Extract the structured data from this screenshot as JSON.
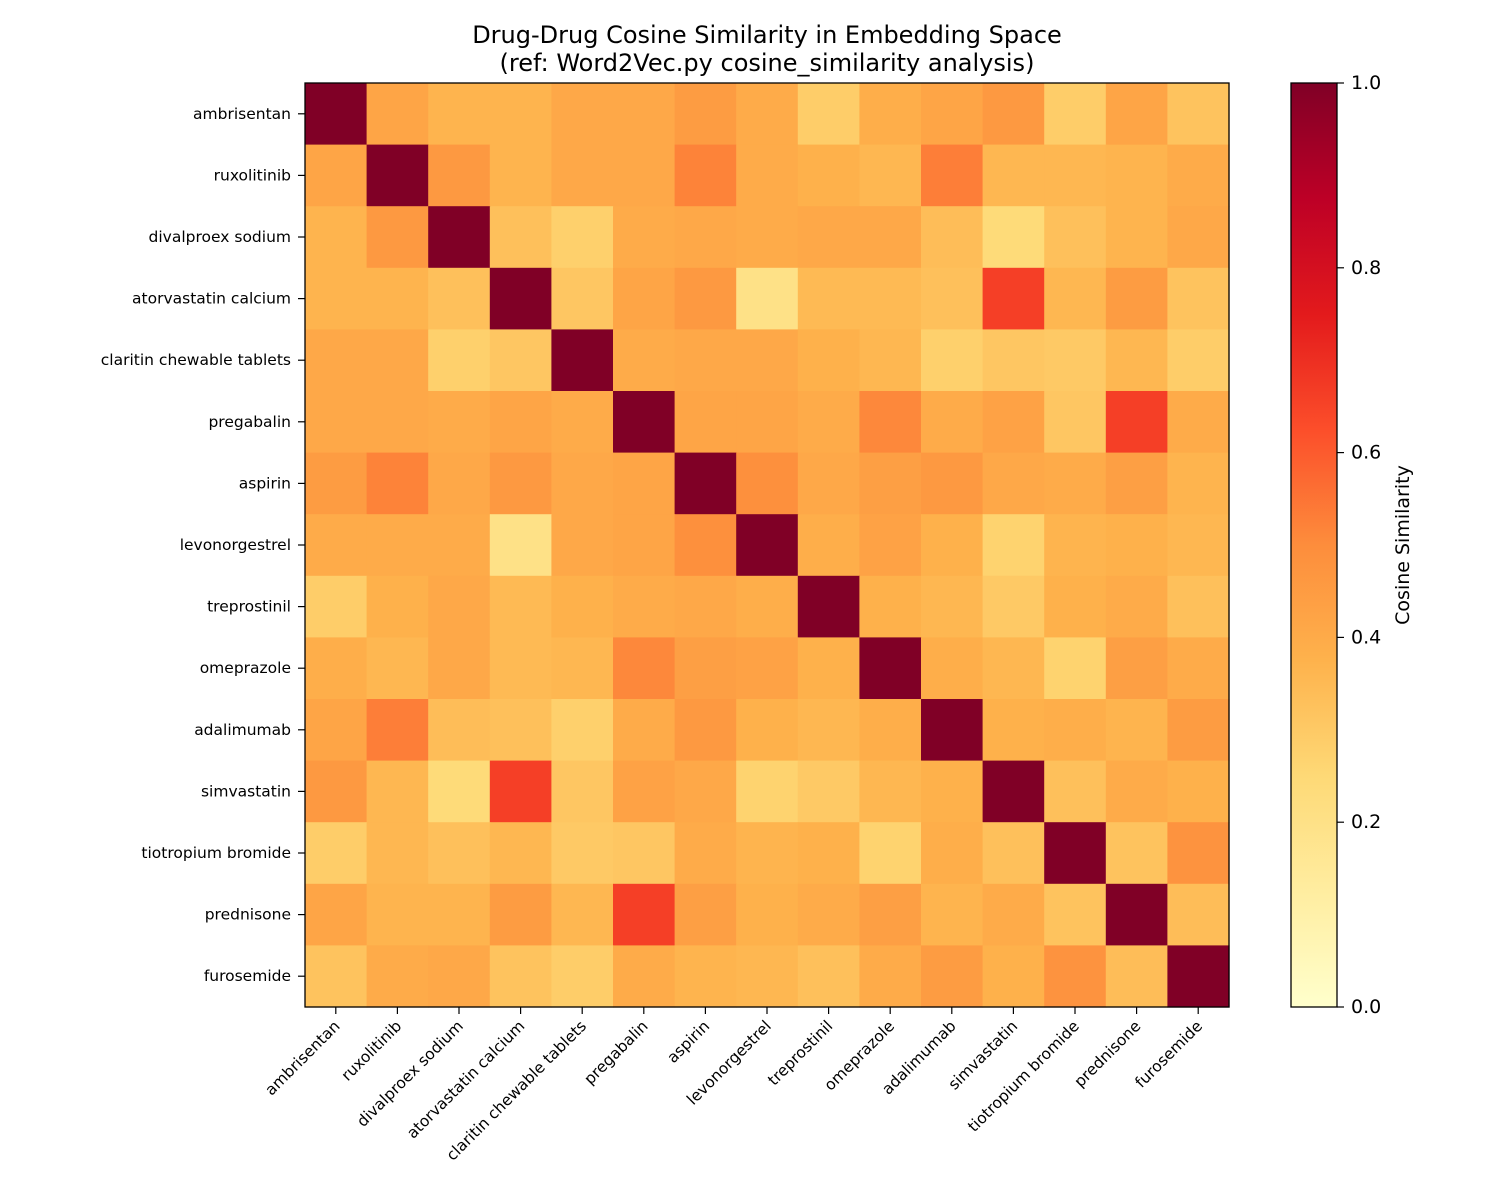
{
  "chart_data": {
    "type": "heatmap",
    "title": "Drug-Drug Cosine Similarity in Embedding Space",
    "subtitle": "(ref: Word2Vec.py cosine_similarity analysis)",
    "colormap": "YlOrRd",
    "labels": [
      "ambrisentan",
      "ruxolitinib",
      "divalproex sodium",
      "atorvastatin calcium",
      "claritin chewable tablets",
      "pregabalin",
      "aspirin",
      "levonorgestrel",
      "treprostinil",
      "omeprazole",
      "adalimumab",
      "simvastatin",
      "tiotropium bromide",
      "prednisone",
      "furosemide"
    ],
    "matrix": [
      [
        1.0,
        0.42,
        0.37,
        0.37,
        0.41,
        0.41,
        0.45,
        0.4,
        0.29,
        0.39,
        0.42,
        0.46,
        0.29,
        0.42,
        0.32
      ],
      [
        0.42,
        1.0,
        0.46,
        0.37,
        0.41,
        0.41,
        0.52,
        0.4,
        0.38,
        0.36,
        0.53,
        0.36,
        0.36,
        0.37,
        0.4
      ],
      [
        0.37,
        0.46,
        1.0,
        0.33,
        0.28,
        0.4,
        0.41,
        0.4,
        0.41,
        0.41,
        0.34,
        0.24,
        0.33,
        0.37,
        0.41
      ],
      [
        0.37,
        0.37,
        0.33,
        1.0,
        0.31,
        0.42,
        0.46,
        0.2,
        0.35,
        0.35,
        0.33,
        0.66,
        0.36,
        0.45,
        0.32
      ],
      [
        0.41,
        0.41,
        0.28,
        0.31,
        1.0,
        0.4,
        0.41,
        0.41,
        0.38,
        0.36,
        0.28,
        0.31,
        0.3,
        0.36,
        0.29
      ],
      [
        0.41,
        0.41,
        0.4,
        0.42,
        0.4,
        1.0,
        0.42,
        0.42,
        0.4,
        0.51,
        0.4,
        0.43,
        0.31,
        0.66,
        0.4
      ],
      [
        0.45,
        0.52,
        0.41,
        0.46,
        0.41,
        0.42,
        1.0,
        0.49,
        0.41,
        0.44,
        0.46,
        0.41,
        0.4,
        0.44,
        0.37
      ],
      [
        0.4,
        0.4,
        0.4,
        0.2,
        0.41,
        0.42,
        0.49,
        1.0,
        0.39,
        0.43,
        0.38,
        0.27,
        0.37,
        0.38,
        0.36
      ],
      [
        0.29,
        0.38,
        0.41,
        0.35,
        0.38,
        0.4,
        0.41,
        0.39,
        1.0,
        0.38,
        0.36,
        0.3,
        0.38,
        0.4,
        0.33
      ],
      [
        0.39,
        0.36,
        0.41,
        0.35,
        0.36,
        0.51,
        0.44,
        0.43,
        0.38,
        1.0,
        0.39,
        0.36,
        0.27,
        0.44,
        0.4
      ],
      [
        0.42,
        0.53,
        0.34,
        0.33,
        0.28,
        0.4,
        0.46,
        0.38,
        0.36,
        0.39,
        1.0,
        0.38,
        0.39,
        0.37,
        0.45
      ],
      [
        0.46,
        0.36,
        0.24,
        0.66,
        0.31,
        0.43,
        0.41,
        0.27,
        0.3,
        0.36,
        0.38,
        1.0,
        0.33,
        0.4,
        0.38
      ],
      [
        0.29,
        0.36,
        0.33,
        0.36,
        0.3,
        0.31,
        0.4,
        0.37,
        0.38,
        0.27,
        0.39,
        0.33,
        1.0,
        0.32,
        0.48
      ],
      [
        0.42,
        0.37,
        0.37,
        0.45,
        0.36,
        0.66,
        0.44,
        0.38,
        0.4,
        0.44,
        0.37,
        0.4,
        0.32,
        1.0,
        0.34
      ],
      [
        0.32,
        0.4,
        0.41,
        0.32,
        0.29,
        0.4,
        0.37,
        0.36,
        0.33,
        0.4,
        0.45,
        0.38,
        0.48,
        0.34,
        1.0
      ]
    ],
    "colorbar": {
      "label": "Cosine Similarity",
      "range": [
        0,
        1
      ],
      "ticks": [
        "0.0",
        "0.2",
        "0.4",
        "0.6",
        "0.8",
        "1.0"
      ]
    },
    "grid": false
  }
}
